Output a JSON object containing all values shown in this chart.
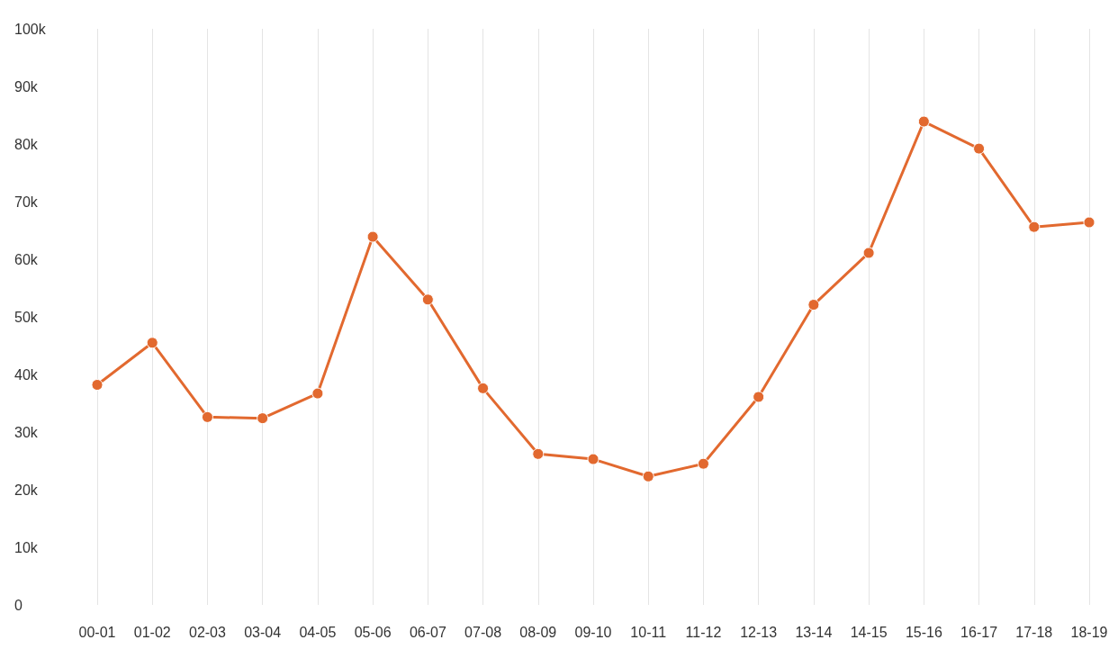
{
  "chart_data": {
    "type": "line",
    "categories": [
      "00-01",
      "01-02",
      "02-03",
      "03-04",
      "04-05",
      "05-06",
      "06-07",
      "07-08",
      "08-09",
      "09-10",
      "10-11",
      "11-12",
      "12-13",
      "13-14",
      "14-15",
      "15-16",
      "16-17",
      "17-18",
      "18-19"
    ],
    "series": [
      {
        "color": "#e2692f",
        "values": [
          38200,
          45500,
          32600,
          32400,
          36700,
          63900,
          53000,
          37600,
          26200,
          25300,
          22300,
          24500,
          36100,
          52100,
          61100,
          83900,
          79200,
          65600,
          66400
        ]
      }
    ],
    "ylim": [
      0,
      100000
    ],
    "yticks": [
      0,
      {
        "value": 10000,
        "label": "10k"
      },
      {
        "value": 20000,
        "label": "20k"
      },
      {
        "value": 30000,
        "label": "30k"
      },
      {
        "value": 40000,
        "label": "40k"
      },
      {
        "value": 50000,
        "label": "50k"
      },
      {
        "value": 60000,
        "label": "60k"
      },
      {
        "value": 70000,
        "label": "70k"
      },
      {
        "value": 80000,
        "label": "80k"
      },
      {
        "value": 90000,
        "label": "90k"
      },
      {
        "value": 100000,
        "label": "100k"
      }
    ],
    "grid": "x",
    "marker": "circle",
    "line_style": "solid"
  }
}
